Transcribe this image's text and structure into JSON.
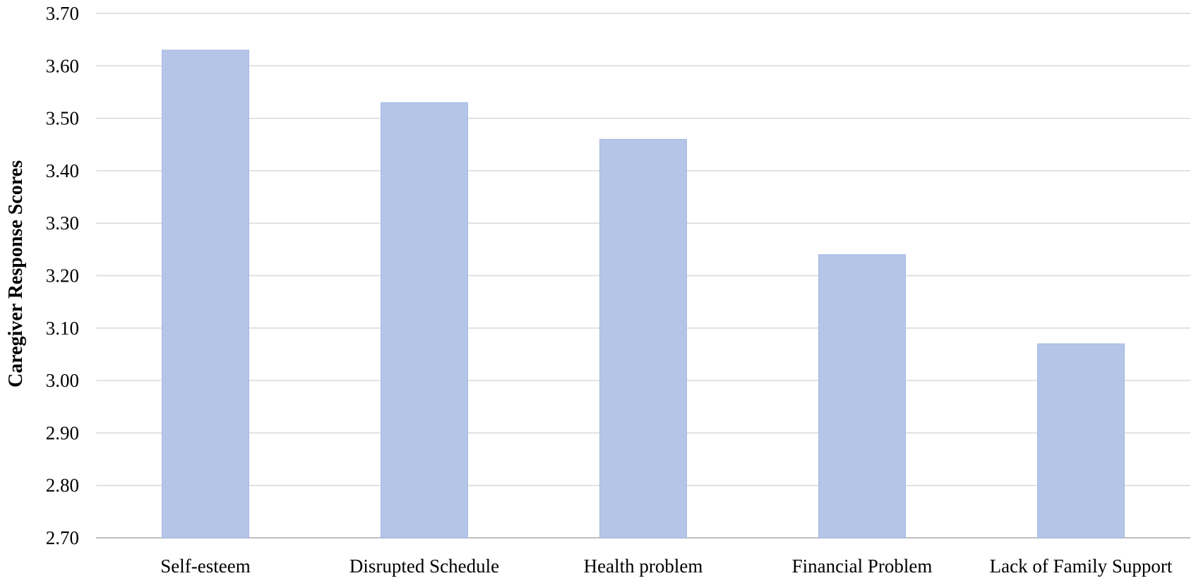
{
  "chart_data": {
    "type": "bar",
    "categories": [
      "Self-esteem",
      "Disrupted Schedule",
      "Health problem",
      "Financial Problem",
      "Lack of Family Support"
    ],
    "values": [
      3.63,
      3.53,
      3.46,
      3.24,
      3.07
    ],
    "title": "",
    "xlabel": "",
    "ylabel": "Caregiver Response Scores",
    "ylim": [
      2.7,
      3.7
    ],
    "yticks": [
      "2.70",
      "2.80",
      "2.90",
      "3.00",
      "3.10",
      "3.20",
      "3.30",
      "3.40",
      "3.50",
      "3.60",
      "3.70"
    ],
    "grid": true,
    "legend": "none",
    "colors": {
      "bar_fill": "#b4c5e8",
      "bar_stroke": "#a7b9e1",
      "gridline": "#d9d9d9"
    }
  }
}
